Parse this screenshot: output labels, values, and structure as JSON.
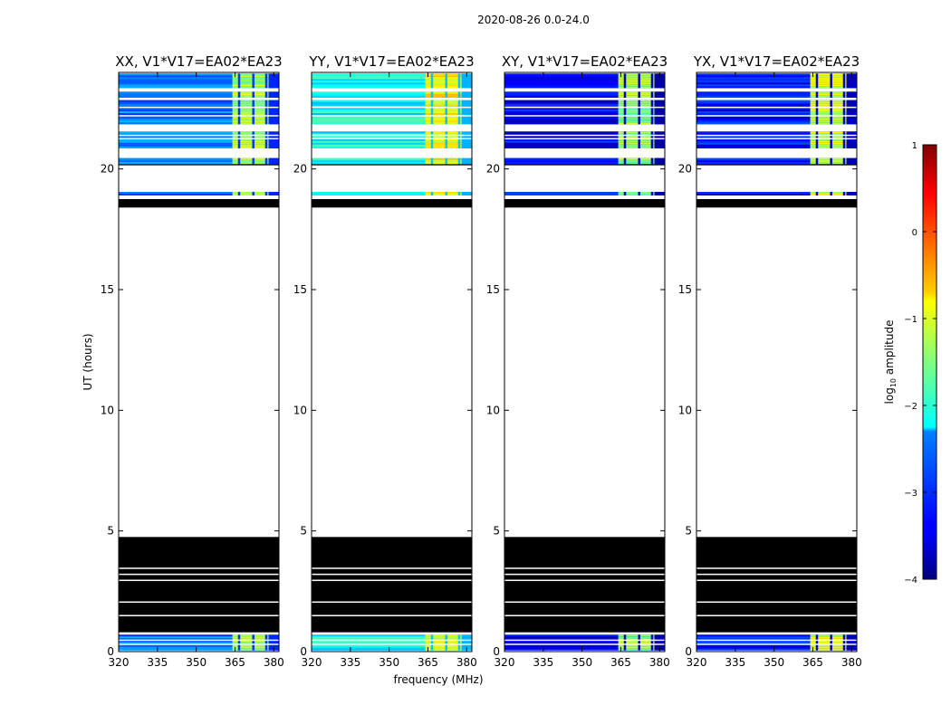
{
  "chart_data": {
    "type": "heatmap",
    "suptitle": "2020-08-26 0.0-24.0",
    "xlabel": "frequency (MHz)",
    "ylabel": "UT (hours)",
    "xlim": [
      320,
      382
    ],
    "ylim": [
      0,
      24
    ],
    "x_ticks": [
      320,
      335,
      350,
      365,
      380
    ],
    "y_ticks": [
      0,
      5,
      10,
      15,
      20
    ],
    "panels": [
      {
        "title": "XX, V1*V17=EA02*EA23",
        "base_level": -2.8,
        "band_level": -1.3
      },
      {
        "title": "YY, V1*V17=EA02*EA23",
        "base_level": -2.1,
        "band_level": -0.9
      },
      {
        "title": "XY, V1*V17=EA02*EA23",
        "base_level": -3.4,
        "band_level": -1.4
      },
      {
        "title": "YX, V1*V17=EA02*EA23",
        "base_level": -3.3,
        "band_level": -1.1
      }
    ],
    "colorbar": {
      "label_main": "log",
      "label_sub": "10",
      "label_tail": " amplitude",
      "range": [
        -4,
        1
      ],
      "ticks": [
        "1",
        "0",
        "−1",
        "−2",
        "−3",
        "−4"
      ],
      "colormap": "jet"
    },
    "data_rows_hours": [
      [
        0.05,
        0.7
      ],
      [
        20.2,
        20.45
      ],
      [
        20.85,
        21.55
      ],
      [
        21.85,
        22.85
      ],
      [
        22.95,
        23.2
      ],
      [
        23.35,
        23.95
      ]
    ],
    "sparse_rows_hours": [
      [
        18.9,
        19.05
      ]
    ],
    "black_blocks_hours": [
      [
        0.8,
        4.75
      ],
      [
        18.4,
        18.75
      ],
      [
        20.15,
        20.2
      ]
    ],
    "white_gaps_hours": [
      [
        1.5,
        1.52
      ],
      [
        2.05,
        2.08
      ],
      [
        2.95,
        2.98
      ],
      [
        3.2,
        3.23
      ],
      [
        3.45,
        3.48
      ],
      [
        0.3,
        0.33
      ],
      [
        0.48,
        0.5
      ],
      [
        21.25,
        21.28
      ],
      [
        21.4,
        21.42
      ],
      [
        22.2,
        22.23
      ],
      [
        22.55,
        22.58
      ]
    ],
    "rfi_band_mhz": [
      364,
      378
    ],
    "rfi_channel_gaps_mhz": [
      366.5,
      372,
      377
    ]
  }
}
